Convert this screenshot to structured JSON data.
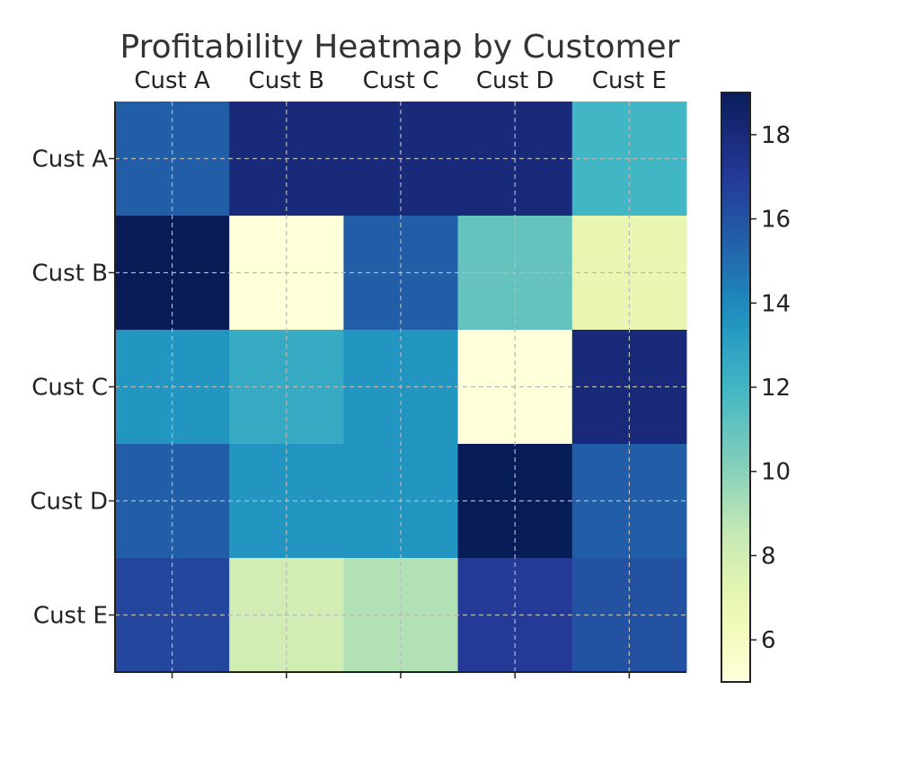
{
  "chart_data": {
    "type": "heatmap",
    "title": "Profitability Heatmap by Customer",
    "xlabel": "",
    "ylabel": "",
    "x_categories": [
      "Cust A",
      "Cust B",
      "Cust C",
      "Cust D",
      "Cust E"
    ],
    "y_categories": [
      "Cust A",
      "Cust B",
      "Cust C",
      "Cust D",
      "Cust E"
    ],
    "values": [
      [
        15.5,
        18,
        18,
        18,
        12
      ],
      [
        19,
        5,
        15.5,
        11,
        7
      ],
      [
        13.5,
        12.5,
        13.5,
        5,
        18
      ],
      [
        15.5,
        13.5,
        13.5,
        19,
        15.5
      ],
      [
        16.5,
        8,
        9,
        17,
        16
      ]
    ],
    "colormap": "YlGnBu",
    "vmin": 5,
    "vmax": 19,
    "colorbar_ticks": [
      "6",
      "8",
      "10",
      "12",
      "14",
      "16",
      "18"
    ],
    "colorbar_tick_values": [
      6,
      8,
      10,
      12,
      14,
      16,
      18
    ],
    "x_axis_position": "top",
    "grid": true,
    "grid_style": "dashed"
  }
}
